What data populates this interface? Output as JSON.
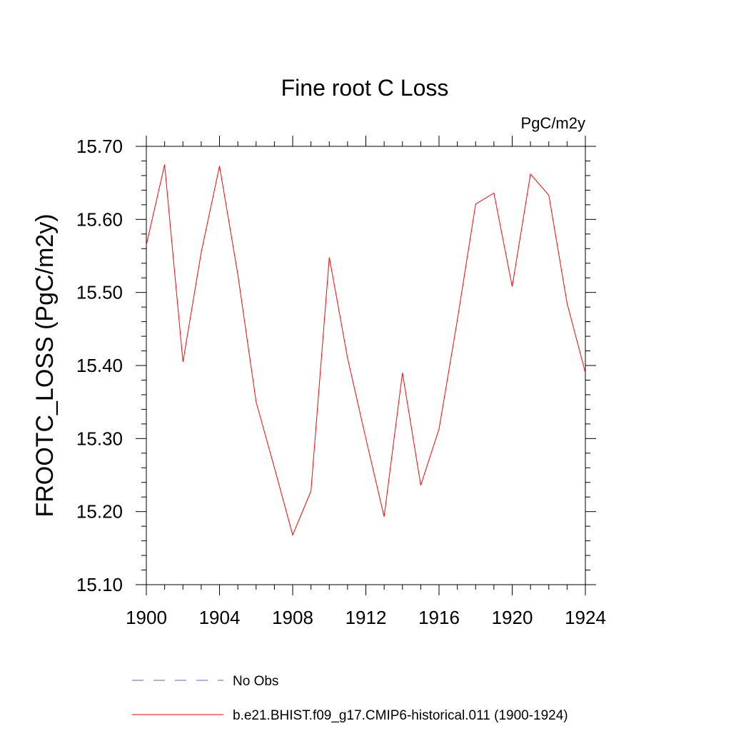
{
  "chart_data": {
    "type": "line",
    "title": "Fine root C Loss",
    "units_label": "PgC/m2y",
    "ylabel": "FROOTC_LOSS  (PgC/m2y)",
    "xlabel": "",
    "xlim": [
      1900,
      1924
    ],
    "ylim": [
      15.1,
      15.7
    ],
    "x_ticks": [
      1900,
      1904,
      1908,
      1912,
      1916,
      1920,
      1924
    ],
    "x_tick_labels": [
      "1900",
      "1904",
      "1908",
      "1912",
      "1916",
      "1920",
      "1924"
    ],
    "y_ticks": [
      15.1,
      15.2,
      15.3,
      15.4,
      15.5,
      15.6,
      15.7
    ],
    "y_tick_labels": [
      "15.10",
      "15.20",
      "15.30",
      "15.40",
      "15.50",
      "15.60",
      "15.70"
    ],
    "grid": false,
    "legend_position": "bottom",
    "series": [
      {
        "name": "b.e21.BHIST.f09_g17.CMIP6-historical.011 (1900-1924)",
        "color": "#ff0000",
        "style": "solid",
        "x": [
          1900,
          1901,
          1902,
          1903,
          1904,
          1905,
          1906,
          1907,
          1908,
          1909,
          1910,
          1911,
          1912,
          1913,
          1914,
          1915,
          1916,
          1917,
          1918,
          1919,
          1920,
          1921,
          1922,
          1923,
          1924
        ],
        "values": [
          15.565,
          15.675,
          15.405,
          15.555,
          15.673,
          15.525,
          15.35,
          15.26,
          15.168,
          15.228,
          15.548,
          15.41,
          15.3,
          15.193,
          15.39,
          15.236,
          15.313,
          15.462,
          15.621,
          15.636,
          15.508,
          15.662,
          15.633,
          15.485,
          15.39
        ]
      }
    ],
    "legend": [
      {
        "label": "No Obs",
        "color": "#6a5acd",
        "style": "dashed"
      },
      {
        "label": "b.e21.BHIST.f09_g17.CMIP6-historical.011 (1900-1924)",
        "color": "#ff0000",
        "style": "solid"
      }
    ]
  }
}
